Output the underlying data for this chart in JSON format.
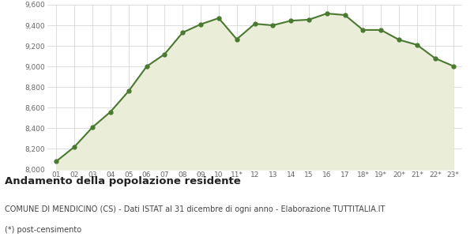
{
  "x_labels": [
    "01",
    "02",
    "03",
    "04",
    "05",
    "06",
    "07",
    "08",
    "09",
    "10",
    "11*",
    "12",
    "13",
    "14",
    "15",
    "16",
    "17",
    "18*",
    "19*",
    "20*",
    "21*",
    "22*",
    "23*"
  ],
  "y_values": [
    8080,
    8220,
    8410,
    8560,
    8760,
    9000,
    9120,
    9330,
    9410,
    9470,
    9265,
    9415,
    9400,
    9445,
    9455,
    9515,
    9500,
    9355,
    9355,
    9260,
    9210,
    9080,
    9005
  ],
  "line_color": "#4a7a30",
  "fill_color": "#eaedd8",
  "marker_color": "#4a7a30",
  "bg_color": "#ffffff",
  "grid_color": "#d0d0d0",
  "ylim": [
    8000,
    9600
  ],
  "yticks": [
    8000,
    8200,
    8400,
    8600,
    8800,
    9000,
    9200,
    9400,
    9600
  ],
  "title": "Andamento della popolazione residente",
  "subtitle": "COMUNE DI MENDICINO (CS) - Dati ISTAT al 31 dicembre di ogni anno - Elaborazione TUTTITALIA.IT",
  "footnote": "(*) post-censimento",
  "title_fontsize": 9.5,
  "subtitle_fontsize": 7.0,
  "footnote_fontsize": 7.0,
  "tick_fontsize": 6.5,
  "line_width": 1.5,
  "marker_size": 3.5
}
